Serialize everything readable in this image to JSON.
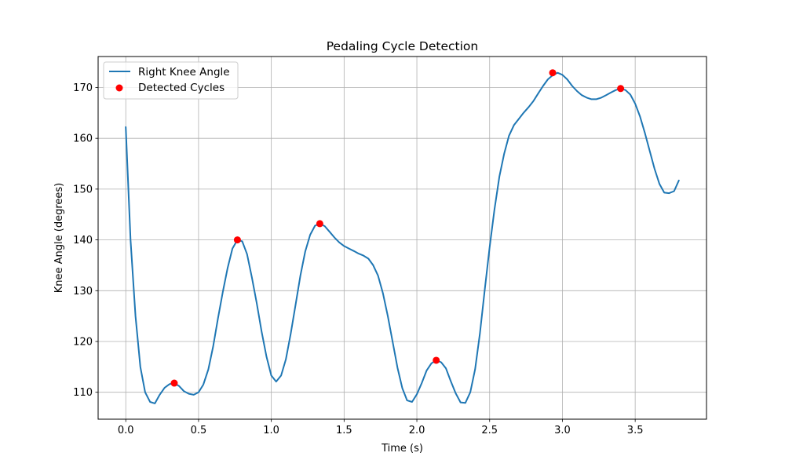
{
  "chart_data": {
    "type": "line",
    "title": "Pedaling Cycle Detection",
    "xlabel": "Time (s)",
    "ylabel": "Knee Angle (degrees)",
    "xlim": [
      -0.19,
      3.99
    ],
    "ylim": [
      104.7,
      176.1
    ],
    "xticks": [
      0.0,
      0.5,
      1.0,
      1.5,
      2.0,
      2.5,
      3.0,
      3.5
    ],
    "xtick_labels": [
      "0.0",
      "0.5",
      "1.0",
      "1.5",
      "2.0",
      "2.5",
      "3.0",
      "3.5"
    ],
    "yticks": [
      110,
      120,
      130,
      140,
      150,
      160,
      170
    ],
    "ytick_labels": [
      "110",
      "120",
      "130",
      "140",
      "150",
      "160",
      "170"
    ],
    "grid": true,
    "legend_position": "top-left",
    "series": [
      {
        "name": "Right Knee Angle",
        "style": "line",
        "color": "#1f77b4",
        "x": [
          0.0,
          0.033,
          0.067,
          0.1,
          0.133,
          0.167,
          0.2,
          0.233,
          0.267,
          0.3,
          0.333,
          0.367,
          0.4,
          0.433,
          0.467,
          0.5,
          0.533,
          0.567,
          0.6,
          0.633,
          0.667,
          0.7,
          0.733,
          0.767,
          0.8,
          0.833,
          0.867,
          0.9,
          0.933,
          0.967,
          1.0,
          1.033,
          1.067,
          1.1,
          1.133,
          1.167,
          1.2,
          1.233,
          1.267,
          1.3,
          1.333,
          1.367,
          1.4,
          1.433,
          1.467,
          1.5,
          1.533,
          1.567,
          1.6,
          1.633,
          1.667,
          1.7,
          1.733,
          1.767,
          1.8,
          1.833,
          1.867,
          1.9,
          1.933,
          1.967,
          2.0,
          2.033,
          2.067,
          2.1,
          2.133,
          2.167,
          2.2,
          2.233,
          2.267,
          2.3,
          2.333,
          2.367,
          2.4,
          2.433,
          2.467,
          2.5,
          2.533,
          2.567,
          2.6,
          2.633,
          2.667,
          2.7,
          2.733,
          2.767,
          2.8,
          2.833,
          2.867,
          2.9,
          2.933,
          2.967,
          3.0,
          3.033,
          3.067,
          3.1,
          3.133,
          3.167,
          3.2,
          3.233,
          3.267,
          3.3,
          3.333,
          3.367,
          3.4,
          3.433,
          3.467,
          3.5,
          3.533,
          3.567,
          3.6,
          3.633,
          3.667,
          3.7,
          3.733,
          3.767,
          3.8
        ],
        "y": [
          162.2,
          140.0,
          125.0,
          115.0,
          110.0,
          108.1,
          107.8,
          109.5,
          110.9,
          111.6,
          111.8,
          111.2,
          110.2,
          109.7,
          109.5,
          110.0,
          111.5,
          114.5,
          119.0,
          124.5,
          129.8,
          134.5,
          138.3,
          140.0,
          139.7,
          137.2,
          132.5,
          127.5,
          122.0,
          117.0,
          113.3,
          112.1,
          113.3,
          116.5,
          121.5,
          127.3,
          133.0,
          137.7,
          141.0,
          142.8,
          143.2,
          142.7,
          141.6,
          140.5,
          139.5,
          138.8,
          138.3,
          137.8,
          137.3,
          136.9,
          136.3,
          135.0,
          133.0,
          129.5,
          125.0,
          120.0,
          114.8,
          110.8,
          108.4,
          108.1,
          109.6,
          111.8,
          114.3,
          115.7,
          116.3,
          115.9,
          114.7,
          112.2,
          109.8,
          108.0,
          107.9,
          110.0,
          114.5,
          121.5,
          130.3,
          138.5,
          146.0,
          152.5,
          157.0,
          160.5,
          162.6,
          163.8,
          165.0,
          166.1,
          167.3,
          168.8,
          170.3,
          171.6,
          172.4,
          172.9,
          172.5,
          171.6,
          170.3,
          169.3,
          168.5,
          168.0,
          167.7,
          167.7,
          168.0,
          168.5,
          169.0,
          169.5,
          169.8,
          169.5,
          168.6,
          166.8,
          164.3,
          161.0,
          157.5,
          154.0,
          151.0,
          149.3,
          149.2,
          149.6,
          151.7
        ]
      },
      {
        "name": "Detected Cycles",
        "style": "markers",
        "color": "#ff0000",
        "x": [
          0.333,
          0.767,
          1.333,
          2.133,
          2.933,
          3.4
        ],
        "y": [
          111.8,
          140.0,
          143.2,
          116.3,
          172.9,
          169.8
        ]
      }
    ]
  }
}
